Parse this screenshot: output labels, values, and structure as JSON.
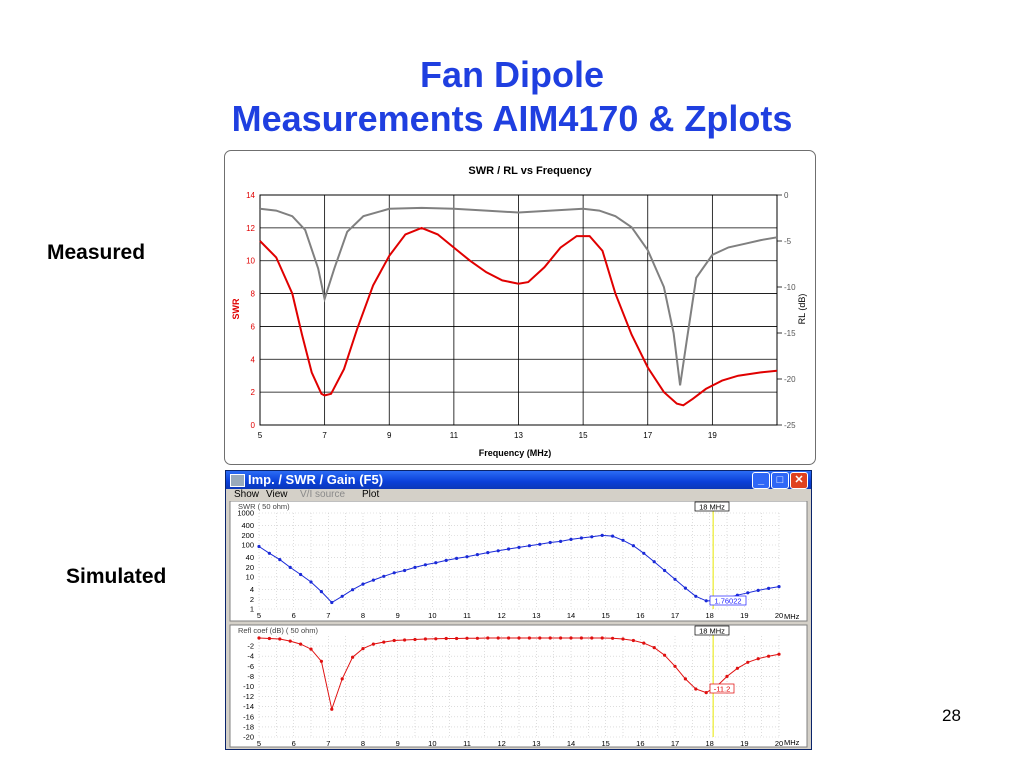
{
  "slide": {
    "title_line1": "Fan Dipole",
    "title_line2": "Measurements AIM4170 & Zplots",
    "label_measured": "Measured",
    "label_simulated": "Simulated",
    "page_number": "28",
    "title_color": "#1f3fe0"
  },
  "measured_chart": {
    "title": "SWR / RL  vs  Frequency",
    "xlabel": "Frequency (MHz)",
    "ylabel_left": "SWR",
    "ylabel_right": "RL (dB)",
    "swr_color": "#e00000",
    "rl_color": "#808080"
  },
  "sim_window": {
    "title": "Imp. / SWR / Gain   (F5)",
    "menu": [
      "Show",
      "View",
      "V/I source",
      "Plot"
    ],
    "buttons": {
      "minimize": "_",
      "maximize": "□",
      "close": "✕"
    },
    "swr_pane": {
      "header": "SWR ( 50 ohm)",
      "marker_label": "18 MHz",
      "readout": "1.76022",
      "unit": "MHz"
    },
    "refl_pane": {
      "header": "Refl coef (dB) ( 50 ohm)",
      "marker_label": "18 MHz",
      "readout": "-11.2",
      "unit": "MHz"
    }
  },
  "chart_data": [
    {
      "type": "line",
      "title": "SWR / RL  vs  Frequency",
      "xlabel": "Frequency (MHz)",
      "ylabel": "SWR",
      "ylabel_right": "RL (dB)",
      "xlim": [
        5,
        21
      ],
      "ylim": [
        0,
        14
      ],
      "ylim_right": [
        -25,
        0
      ],
      "x_ticks": [
        5,
        7,
        9,
        11,
        13,
        15,
        17,
        19
      ],
      "y_ticks": [
        0,
        2,
        4,
        6,
        8,
        10,
        12,
        14
      ],
      "y_ticks_right": [
        0,
        -5,
        -10,
        -15,
        -20,
        -25
      ],
      "grid": true,
      "series": [
        {
          "axis": "left",
          "points": [
            [
              5,
              11.2
            ],
            [
              5.5,
              10.2
            ],
            [
              6,
              8
            ],
            [
              6.3,
              5.5
            ],
            [
              6.6,
              3.2
            ],
            [
              6.9,
              1.9
            ],
            [
              7,
              1.8
            ],
            [
              7.2,
              1.9
            ],
            [
              7.6,
              3.4
            ],
            [
              8,
              5.8
            ],
            [
              8.5,
              8.5
            ],
            [
              9,
              10.3
            ],
            [
              9.5,
              11.6
            ],
            [
              10,
              12.0
            ],
            [
              10.5,
              11.6
            ],
            [
              11,
              10.8
            ],
            [
              11.5,
              10.0
            ],
            [
              12,
              9.3
            ],
            [
              12.5,
              8.8
            ],
            [
              13,
              8.6
            ],
            [
              13.3,
              8.7
            ],
            [
              13.8,
              9.6
            ],
            [
              14.3,
              10.8
            ],
            [
              14.8,
              11.5
            ],
            [
              15.2,
              11.5
            ],
            [
              15.6,
              10.6
            ],
            [
              16,
              8.0
            ],
            [
              16.5,
              5.5
            ],
            [
              17,
              3.5
            ],
            [
              17.5,
              2.0
            ],
            [
              17.9,
              1.3
            ],
            [
              18.1,
              1.2
            ],
            [
              18.4,
              1.6
            ],
            [
              18.8,
              2.2
            ],
            [
              19.3,
              2.7
            ],
            [
              19.8,
              3.0
            ],
            [
              20.5,
              3.2
            ],
            [
              21,
              3.3
            ]
          ]
        },
        {
          "axis": "right",
          "points": [
            [
              5,
              -1.5
            ],
            [
              5.5,
              -1.7
            ],
            [
              6,
              -2.3
            ],
            [
              6.4,
              -3.8
            ],
            [
              6.8,
              -8
            ],
            [
              7,
              -11.3
            ],
            [
              7.3,
              -8
            ],
            [
              7.7,
              -4
            ],
            [
              8.2,
              -2.3
            ],
            [
              9,
              -1.5
            ],
            [
              10,
              -1.4
            ],
            [
              11,
              -1.5
            ],
            [
              12,
              -1.7
            ],
            [
              13,
              -1.9
            ],
            [
              14,
              -1.7
            ],
            [
              15,
              -1.5
            ],
            [
              15.5,
              -1.7
            ],
            [
              16,
              -2.3
            ],
            [
              16.5,
              -3.5
            ],
            [
              17,
              -6
            ],
            [
              17.5,
              -10
            ],
            [
              17.8,
              -15
            ],
            [
              18,
              -20.7
            ],
            [
              18.2,
              -16
            ],
            [
              18.5,
              -9
            ],
            [
              19,
              -6.5
            ],
            [
              19.5,
              -5.7
            ],
            [
              20,
              -5.3
            ],
            [
              20.5,
              -4.9
            ],
            [
              21,
              -4.6
            ]
          ]
        }
      ]
    },
    {
      "type": "line",
      "title": "SWR ( 50 ohm)",
      "xlim": [
        5,
        20
      ],
      "ylim": [
        1,
        1000
      ],
      "log_y": true,
      "x_ticks": [
        5,
        6,
        7,
        8,
        9,
        10,
        11,
        12,
        13,
        14,
        15,
        16,
        17,
        18,
        19,
        20
      ],
      "y_ticks": [
        1,
        2,
        4,
        10,
        20,
        40,
        100,
        200,
        400,
        1000
      ],
      "series": [
        {
          "x": [
            5,
            5.3,
            5.6,
            5.9,
            6.2,
            6.5,
            6.8,
            7.1,
            7.4,
            7.7,
            8,
            8.3,
            8.6,
            8.9,
            9.2,
            9.5,
            9.8,
            10.1,
            10.4,
            10.7,
            11,
            11.3,
            11.6,
            11.9,
            12.2,
            12.5,
            12.8,
            13.1,
            13.4,
            13.7,
            14,
            14.3,
            14.6,
            14.9,
            15.2,
            15.5,
            15.8,
            16.1,
            16.4,
            16.7,
            17,
            17.3,
            17.6,
            17.9,
            18.2,
            18.5,
            18.8,
            19.1,
            19.4,
            19.7,
            20
          ],
          "y": [
            90,
            55,
            35,
            20,
            12,
            7,
            3.5,
            1.6,
            2.5,
            4,
            6,
            8,
            10.5,
            13.5,
            16,
            20,
            24,
            28,
            33,
            38,
            43,
            50,
            58,
            66,
            75,
            84,
            95,
            105,
            120,
            130,
            150,
            165,
            180,
            200,
            190,
            140,
            95,
            55,
            30,
            16,
            8.5,
            4.5,
            2.5,
            1.8,
            1.76,
            2.2,
            2.7,
            3.2,
            3.8,
            4.4,
            5
          ]
        }
      ]
    },
    {
      "type": "line",
      "title": "Refl coef (dB) ( 50 ohm)",
      "xlim": [
        5,
        20
      ],
      "ylim": [
        -20,
        0
      ],
      "x_ticks": [
        5,
        6,
        7,
        8,
        9,
        10,
        11,
        12,
        13,
        14,
        15,
        16,
        17,
        18,
        19,
        20
      ],
      "y_ticks": [
        -2,
        -4,
        -6,
        -8,
        -10,
        -12,
        -14,
        -16,
        -18,
        -20
      ],
      "series": [
        {
          "x": [
            5,
            5.3,
            5.6,
            5.9,
            6.2,
            6.5,
            6.8,
            7.1,
            7.4,
            7.7,
            8,
            8.3,
            8.6,
            8.9,
            9.2,
            9.5,
            9.8,
            10.1,
            10.4,
            10.7,
            11,
            11.3,
            11.6,
            11.9,
            12.2,
            12.5,
            12.8,
            13.1,
            13.4,
            13.7,
            14,
            14.3,
            14.6,
            14.9,
            15.2,
            15.5,
            15.8,
            16.1,
            16.4,
            16.7,
            17,
            17.3,
            17.6,
            17.9,
            18.2,
            18.5,
            18.8,
            19.1,
            19.4,
            19.7,
            20
          ],
          "y": [
            -0.4,
            -0.5,
            -0.6,
            -1.0,
            -1.6,
            -2.6,
            -5.0,
            -14.5,
            -8.5,
            -4.2,
            -2.5,
            -1.6,
            -1.2,
            -0.9,
            -0.8,
            -0.7,
            -0.6,
            -0.55,
            -0.5,
            -0.5,
            -0.45,
            -0.45,
            -0.4,
            -0.4,
            -0.4,
            -0.4,
            -0.4,
            -0.4,
            -0.4,
            -0.4,
            -0.4,
            -0.4,
            -0.4,
            -0.4,
            -0.45,
            -0.6,
            -0.9,
            -1.4,
            -2.3,
            -3.8,
            -6.0,
            -8.5,
            -10.5,
            -11.2,
            -10.0,
            -8.0,
            -6.4,
            -5.2,
            -4.5,
            -4.0,
            -3.6
          ]
        }
      ]
    }
  ]
}
